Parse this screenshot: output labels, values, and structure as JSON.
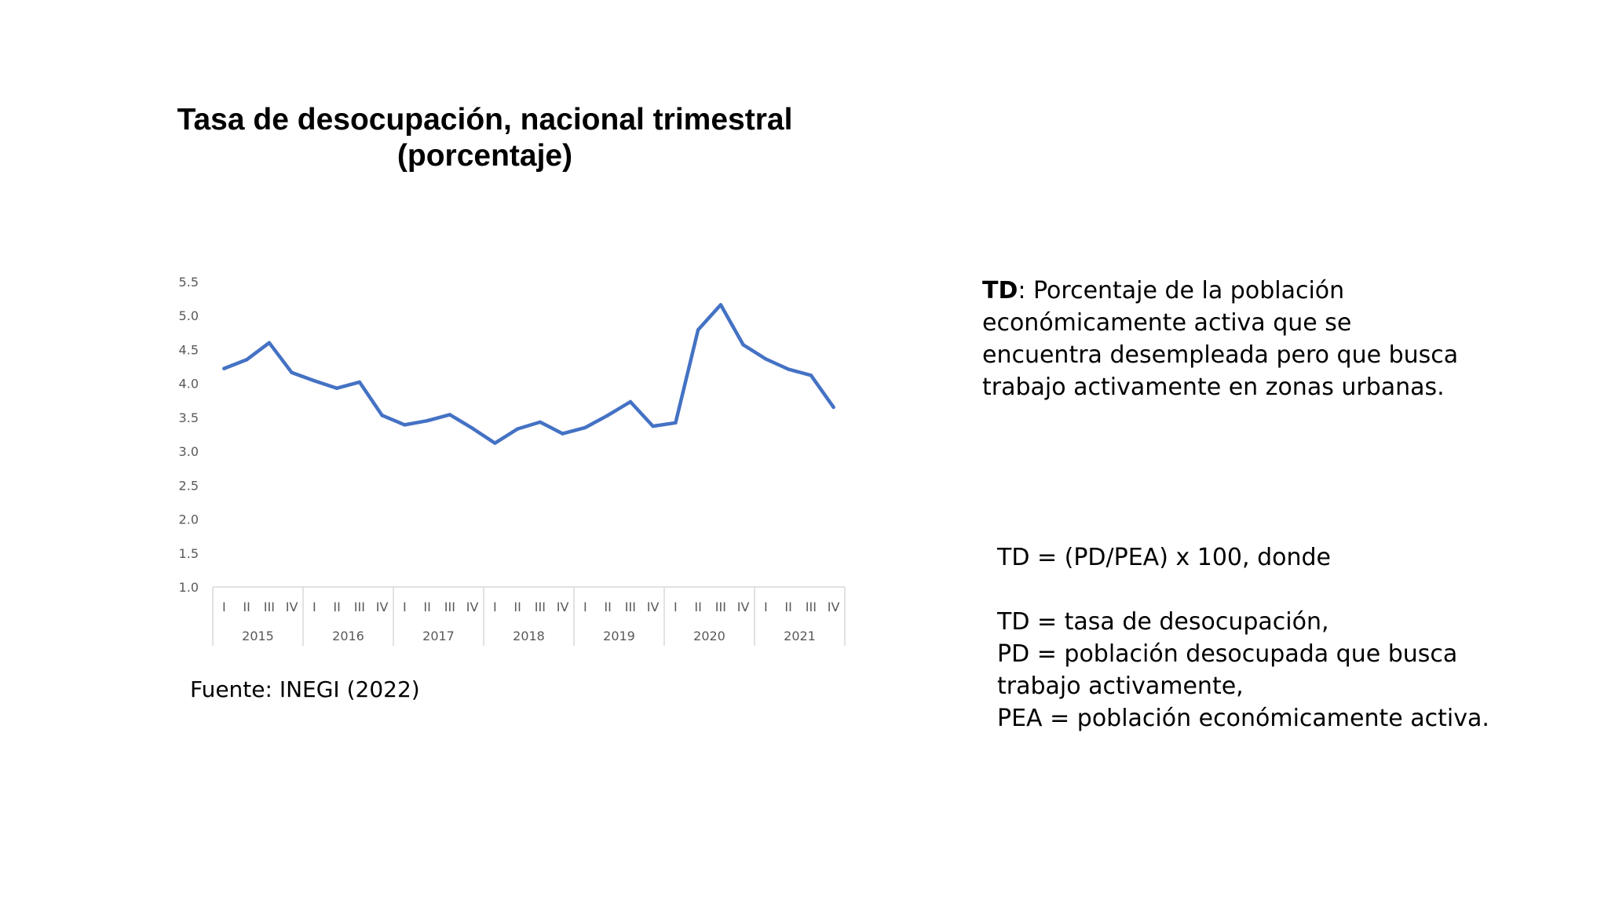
{
  "title_line1": "Tasa de desocupación, nacional trimestral",
  "title_line2": "(porcentaje)",
  "source": "Fuente: INEGI (2022)",
  "definition": {
    "term": "TD",
    "text": ": Porcentaje de la población económicamente activa que se encuentra desempleada pero que busca trabajo activamente en zonas urbanas."
  },
  "formula": {
    "line1": "TD = (PD/PEA) x 100, donde",
    "line2": "TD = tasa de desocupación,",
    "line3": "PD = población desocupada que busca trabajo activamente,",
    "line4": "PEA = población económicamente activa."
  },
  "colors": {
    "line": "#4472c4",
    "axis_text": "#595959",
    "axis_line": "#d9d9d9"
  },
  "chart_data": {
    "type": "line",
    "title": "Tasa de desocupación, nacional trimestral (porcentaje)",
    "xlabel": "",
    "ylabel": "",
    "ylim": [
      1.0,
      5.5
    ],
    "yticks": [
      "1.0",
      "1.5",
      "2.0",
      "2.5",
      "3.0",
      "3.5",
      "4.0",
      "4.5",
      "5.0",
      "5.5"
    ],
    "grid": false,
    "legend": "none",
    "years": [
      "2015",
      "2016",
      "2017",
      "2018",
      "2019",
      "2020",
      "2021"
    ],
    "quarters": [
      "I",
      "II",
      "III",
      "IV"
    ],
    "series": [
      {
        "values": [
          4.22,
          4.35,
          4.6,
          4.16,
          4.04,
          3.93,
          4.02,
          3.53,
          3.39,
          3.45,
          3.54,
          3.34,
          3.12,
          3.33,
          3.43,
          3.26,
          3.35,
          3.53,
          3.73,
          3.37,
          3.42,
          4.79,
          5.16,
          4.57,
          4.36,
          4.21,
          4.12,
          3.65
        ]
      }
    ]
  }
}
